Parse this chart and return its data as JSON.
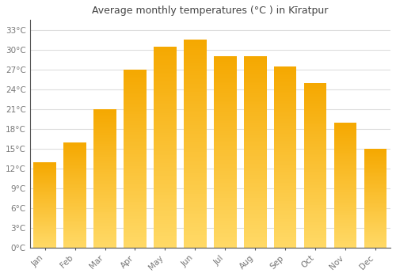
{
  "title": "Average monthly temperatures (°C ) in Kīratpur",
  "months": [
    "Jan",
    "Feb",
    "Mar",
    "Apr",
    "May",
    "Jun",
    "Jul",
    "Aug",
    "Sep",
    "Oct",
    "Nov",
    "Dec"
  ],
  "temperatures": [
    13,
    16,
    21,
    27,
    30.5,
    31.5,
    29,
    29,
    27.5,
    25,
    19,
    15
  ],
  "bar_color_top": "#F5A800",
  "bar_color_bottom": "#FFD966",
  "background_color": "#ffffff",
  "grid_color": "#dddddd",
  "yticks": [
    0,
    3,
    6,
    9,
    12,
    15,
    18,
    21,
    24,
    27,
    30,
    33
  ],
  "ylim": [
    0,
    34.5
  ],
  "title_fontsize": 9,
  "tick_fontsize": 7.5,
  "text_color": "#777777",
  "title_color": "#444444"
}
